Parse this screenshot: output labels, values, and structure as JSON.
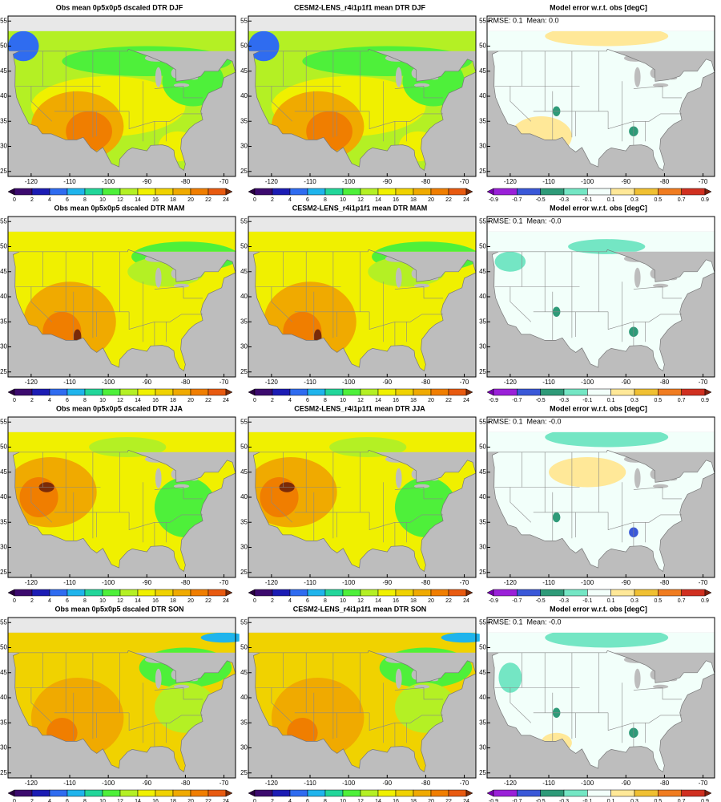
{
  "lon_range": [
    -126,
    -67
  ],
  "lat_range": [
    24,
    56
  ],
  "lon_ticks": [
    -120,
    -110,
    -100,
    -90,
    -80,
    -70
  ],
  "lat_ticks": [
    25,
    30,
    35,
    40,
    45,
    50,
    55
  ],
  "colorbars": [
    {
      "ticks": [
        0,
        2,
        4,
        6,
        8,
        10,
        12,
        14,
        16,
        18,
        20,
        22,
        24
      ],
      "colors": [
        "#2a0040",
        "#3c0a6e",
        "#1c1cb4",
        "#2f6cf0",
        "#1fb4ec",
        "#22d69a",
        "#4ef03a",
        "#b4f024",
        "#f0f000",
        "#f0d200",
        "#f0aa00",
        "#f07e00",
        "#e85a10",
        "#7a2a08"
      ]
    },
    {
      "ticks": [
        -0.9,
        -0.7,
        -0.5,
        -0.3,
        -0.1,
        0.1,
        0.3,
        0.5,
        0.7,
        0.9
      ],
      "colors": [
        "#7a00b4",
        "#9a20d8",
        "#3a58d8",
        "#2e9a78",
        "#74e6c4",
        "#f2fffa",
        "#ffe898",
        "#f0c032",
        "#f07c20",
        "#d03020",
        "#7a2010"
      ]
    }
  ],
  "rows": [
    {
      "panels": [
        {
          "title": "Obs mean 0p5x0p5 dscaled DTR DJF"
        },
        {
          "title": "CESM2-LENS_r4i1p1f1 mean DTR DJF"
        },
        {
          "title": "Model error w.r.t. obs [degC]",
          "annotation": "RMSE: 0.1  Mean: 0.0"
        }
      ]
    },
    {
      "panels": [
        {
          "title": "Obs mean 0p5x0p5 dscaled DTR MAM"
        },
        {
          "title": "CESM2-LENS_r4i1p1f1 mean DTR MAM"
        },
        {
          "title": "Model error w.r.t. obs [degC]",
          "annotation": "RMSE: 0.1  Mean: -0.0"
        }
      ]
    },
    {
      "panels": [
        {
          "title": "Obs mean 0p5x0p5 dscaled DTR JJA"
        },
        {
          "title": "CESM2-LENS_r4i1p1f1 mean DTR JJA"
        },
        {
          "title": "Model error w.r.t. obs [degC]",
          "annotation": "RMSE: 0.1  Mean: -0.0"
        }
      ]
    },
    {
      "panels": [
        {
          "title": "Obs mean 0p5x0p5 dscaled DTR SON"
        },
        {
          "title": "CESM2-LENS_r4i1p1f1 mean DTR SON"
        },
        {
          "title": "Model error w.r.t. obs [degC]",
          "annotation": "RMSE: 0.1  Mean: -0.0"
        }
      ]
    }
  ]
}
